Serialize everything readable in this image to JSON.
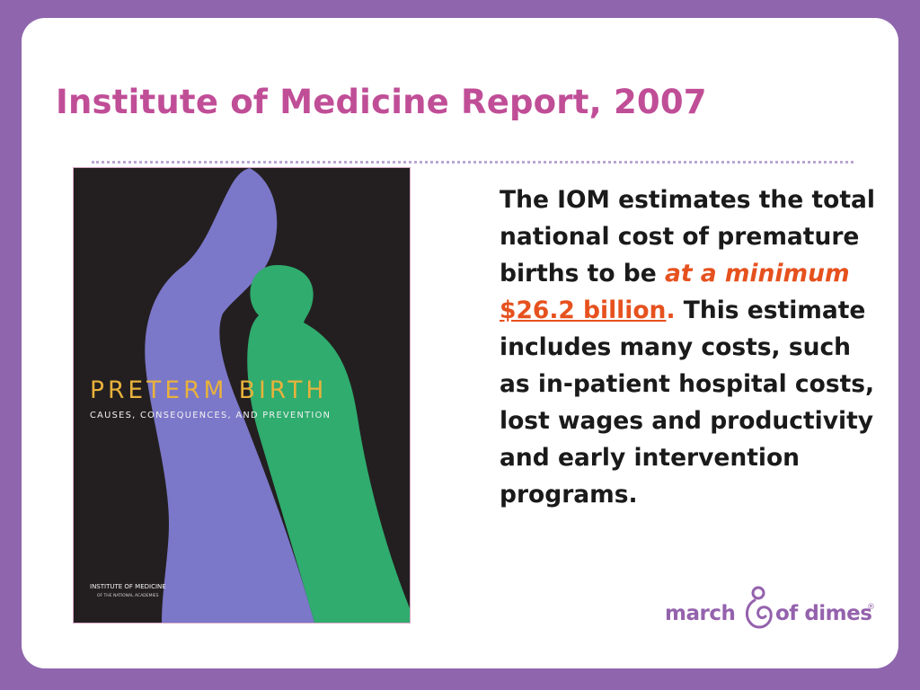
{
  "slide": {
    "title": "Institute of Medicine Report, 2007",
    "body": {
      "p1": "The IOM estimates the total national cost of premature births to be",
      "emphasis": "at a minimum",
      "amount": "$26.2 billion",
      "period": ".",
      "p2": "This estimate includes many costs, such as in-patient hospital costs, lost wages and productivity and early intervention programs."
    },
    "cover": {
      "title": "PRETERM BIRTH",
      "subtitle": "CAUSES, CONSEQUENCES, AND PREVENTION",
      "publisher": "INSTITUTE OF MEDICINE",
      "publisher_sub": "OF THE NATIONAL ACADEMIES"
    },
    "logo": {
      "left": "march",
      "right": "of dimes",
      "mark": "®"
    }
  },
  "colors": {
    "frame": "#8f66ad",
    "title": "#c04e97",
    "highlight": "#e6511e",
    "cover_bg": "#231f20",
    "cover_violet": "#7b77c9",
    "cover_green": "#2fac6e",
    "cover_gold": "#e8b23c",
    "logo_purple": "#9462ad"
  }
}
